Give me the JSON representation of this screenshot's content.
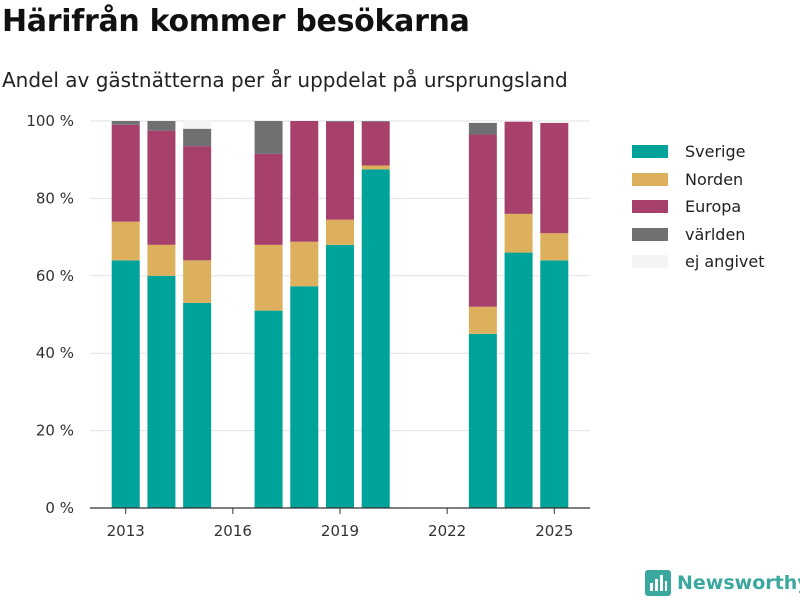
{
  "header": {
    "title": "Härifrån kommer besökarna",
    "subtitle": "Andel av gästnätterna per år uppdelat på ursprungsland"
  },
  "brand": {
    "name": "Newsworthy",
    "icon": "bar-chart-icon",
    "color": "#3aa89e"
  },
  "chart_data": {
    "type": "bar",
    "stacked": true,
    "x": [
      2013,
      2014,
      2015,
      2016,
      2017,
      2018,
      2019,
      2020,
      2021,
      2022,
      2023,
      2024,
      2025
    ],
    "x_ticks": [
      2013,
      2016,
      2019,
      2022,
      2025
    ],
    "xlim": [
      2012,
      2026
    ],
    "ylim": [
      0,
      100
    ],
    "y_ticks": [
      0,
      20,
      40,
      60,
      80,
      100
    ],
    "y_tick_labels": [
      "0 %",
      "20 %",
      "40 %",
      "60 %",
      "80 %",
      "100 %"
    ],
    "grid": true,
    "legend_position": "right",
    "series": [
      {
        "name": "Sverige",
        "color": "#00a39a",
        "values": [
          64,
          60,
          53,
          null,
          51,
          57.3,
          68,
          87.5,
          null,
          null,
          45,
          66,
          64
        ]
      },
      {
        "name": "Norden",
        "color": "#dcb05c",
        "values": [
          10,
          8,
          11,
          null,
          17,
          11.5,
          6.5,
          1,
          null,
          null,
          7,
          10,
          7
        ]
      },
      {
        "name": "Europa",
        "color": "#a7406b",
        "values": [
          25,
          29.5,
          29.5,
          null,
          23.5,
          31.2,
          25.3,
          11.3,
          null,
          null,
          44.5,
          23.8,
          28.5
        ]
      },
      {
        "name": "världen",
        "color": "#707072",
        "values": [
          1,
          2.5,
          4.5,
          null,
          8.5,
          0,
          0.2,
          0.2,
          null,
          null,
          3,
          0,
          0
        ]
      },
      {
        "name": "ej angivet",
        "color": "#f4f4f4",
        "values": [
          0,
          0,
          2,
          null,
          0,
          0,
          0,
          0,
          null,
          null,
          0.5,
          0,
          0
        ]
      }
    ]
  }
}
